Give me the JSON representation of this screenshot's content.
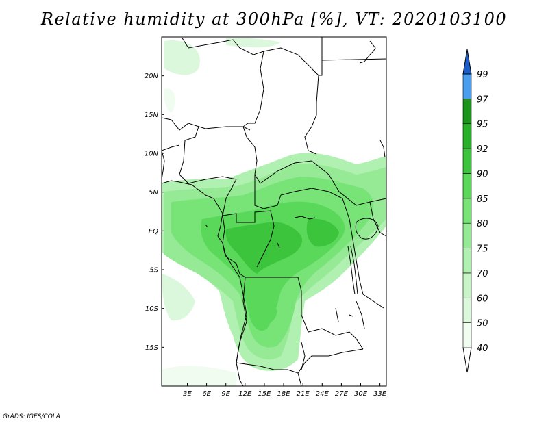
{
  "title": "Relative humidity at 300hPa [%], VT: 2020103100",
  "credit": "GrADS: IGES/COLA",
  "map": {
    "lon_range": [
      -1,
      34
    ],
    "lat_range": [
      -20,
      25
    ],
    "lat_ticks": [
      {
        "value": 20,
        "label": "20N"
      },
      {
        "value": 15,
        "label": "15N"
      },
      {
        "value": 10,
        "label": "10N"
      },
      {
        "value": 5,
        "label": "5N"
      },
      {
        "value": 0,
        "label": "EQ"
      },
      {
        "value": -5,
        "label": "5S"
      },
      {
        "value": -10,
        "label": "10S"
      },
      {
        "value": -15,
        "label": "15S"
      }
    ],
    "lon_ticks": [
      {
        "value": 3,
        "label": "3E"
      },
      {
        "value": 6,
        "label": "6E"
      },
      {
        "value": 9,
        "label": "9E"
      },
      {
        "value": 12,
        "label": "12E"
      },
      {
        "value": 15,
        "label": "15E"
      },
      {
        "value": 18,
        "label": "18E"
      },
      {
        "value": 21,
        "label": "21E"
      },
      {
        "value": 24,
        "label": "24E"
      },
      {
        "value": 27,
        "label": "27E"
      },
      {
        "value": 30,
        "label": "30E"
      },
      {
        "value": 33,
        "label": "33E"
      }
    ]
  },
  "colorbar": {
    "levels": [
      {
        "label": "40",
        "color": "#f0fcf0"
      },
      {
        "label": "50",
        "color": "#dcf8dc"
      },
      {
        "label": "60",
        "color": "#c8f4c8"
      },
      {
        "label": "70",
        "color": "#b0f0b0"
      },
      {
        "label": "75",
        "color": "#96ea96"
      },
      {
        "label": "80",
        "color": "#78e478"
      },
      {
        "label": "85",
        "color": "#5ad85a"
      },
      {
        "label": "90",
        "color": "#3cc43c"
      },
      {
        "label": "92",
        "color": "#28b028"
      },
      {
        "label": "95",
        "color": "#1a941a"
      },
      {
        "label": "97",
        "color": "#4a9ef0"
      },
      {
        "label": "99",
        "color": "#2a78e0"
      }
    ],
    "bottom_color": "#ffffff",
    "top_color": "#1a5cc8"
  }
}
